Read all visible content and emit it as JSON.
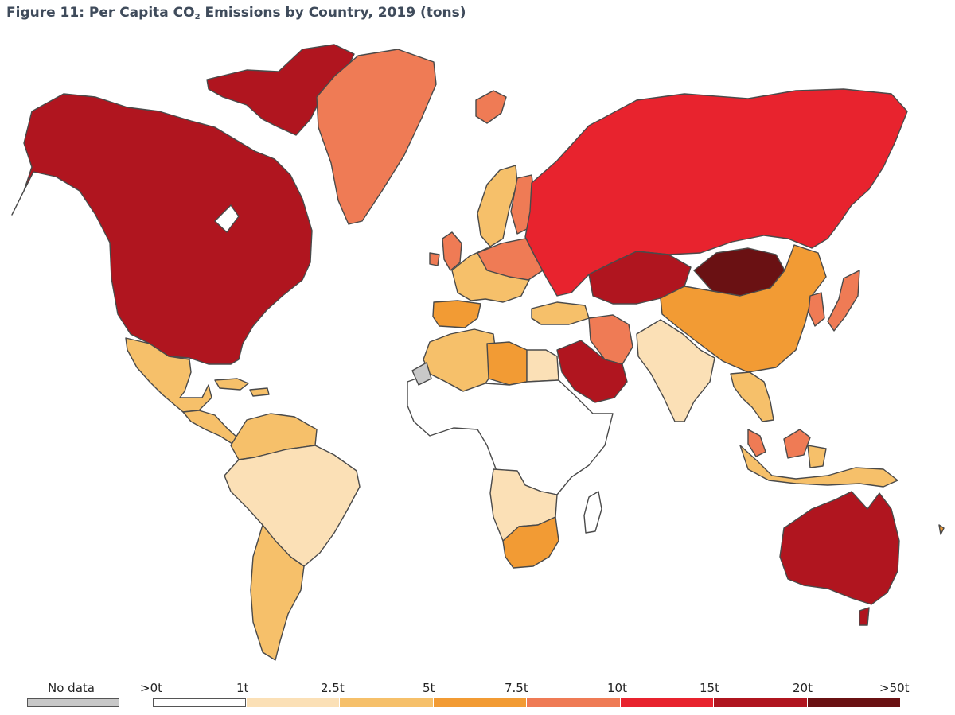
{
  "header": {
    "title_pre": "Figure 11: Per Capita CO",
    "title_sub": "2",
    "title_post": " Emissions by Country, 2019 (tons)"
  },
  "legend": {
    "nodata_label": "No data",
    "nodata_color": "#c8c8c8",
    "tick_labels": [
      ">0t",
      "1t",
      "2.5t",
      "5t",
      "7.5t",
      "10t",
      "15t",
      "20t",
      ">50t"
    ],
    "bins": [
      {
        "from": 0,
        "to": 1,
        "color": "#ffffff"
      },
      {
        "from": 1,
        "to": 2.5,
        "color": "#fbe0b6"
      },
      {
        "from": 2.5,
        "to": 5,
        "color": "#f6c06a"
      },
      {
        "from": 5,
        "to": 7.5,
        "color": "#f29b34"
      },
      {
        "from": 7.5,
        "to": 10,
        "color": "#ef7b55"
      },
      {
        "from": 10,
        "to": 15,
        "color": "#e8232e"
      },
      {
        "from": 15,
        "to": 20,
        "color": "#b0151f"
      },
      {
        "from": 20,
        "to": 50,
        "color": "#6a1113"
      }
    ]
  },
  "map_regions": [
    {
      "name": "usa-canada-alaska",
      "color": "#b0151f"
    },
    {
      "name": "canada-arctic-islands",
      "color": "#b0151f"
    },
    {
      "name": "greenland",
      "color": "#ef7b55"
    },
    {
      "name": "iceland",
      "color": "#ef7b55"
    },
    {
      "name": "mexico",
      "color": "#f6c06a"
    },
    {
      "name": "central-america",
      "color": "#f6c06a"
    },
    {
      "name": "caribbean",
      "color": "#f6c06a"
    },
    {
      "name": "venezuela-colombia",
      "color": "#f6c06a"
    },
    {
      "name": "brazil-and-north-south-america",
      "color": "#fbe0b6"
    },
    {
      "name": "argentina-chile",
      "color": "#f6c06a"
    },
    {
      "name": "scandinavia",
      "color": "#f6c06a"
    },
    {
      "name": "finland",
      "color": "#ef7b55"
    },
    {
      "name": "western-europe",
      "color": "#f6c06a"
    },
    {
      "name": "central-europe",
      "color": "#ef7b55"
    },
    {
      "name": "uk-ireland",
      "color": "#ef7b55"
    },
    {
      "name": "spain-portugal",
      "color": "#f29b34"
    },
    {
      "name": "russia",
      "color": "#e8232e"
    },
    {
      "name": "kazakhstan",
      "color": "#b0151f"
    },
    {
      "name": "mongolia",
      "color": "#6a1113"
    },
    {
      "name": "china",
      "color": "#f29b34"
    },
    {
      "name": "japan-korea",
      "color": "#ef7b55"
    },
    {
      "name": "turkey",
      "color": "#f6c06a"
    },
    {
      "name": "iran",
      "color": "#ef7b55"
    },
    {
      "name": "saudi-arabia-gulf",
      "color": "#b0151f"
    },
    {
      "name": "india",
      "color": "#fbe0b6"
    },
    {
      "name": "southeast-asia",
      "color": "#f6c06a"
    },
    {
      "name": "malaysia",
      "color": "#ef7b55"
    },
    {
      "name": "indonesia",
      "color": "#f6c06a"
    },
    {
      "name": "australia",
      "color": "#b0151f"
    },
    {
      "name": "new-zealand",
      "color": "#f29b34"
    },
    {
      "name": "north-africa",
      "color": "#f6c06a"
    },
    {
      "name": "libya",
      "color": "#f29b34"
    },
    {
      "name": "egypt",
      "color": "#fbe0b6"
    },
    {
      "name": "sub-saharan-africa",
      "color": "#ffffff"
    },
    {
      "name": "western-sahara",
      "color": "#c8c8c8"
    },
    {
      "name": "southern-africa",
      "color": "#fbe0b6"
    },
    {
      "name": "south-africa",
      "color": "#f29b34"
    },
    {
      "name": "madagascar",
      "color": "#ffffff"
    }
  ]
}
